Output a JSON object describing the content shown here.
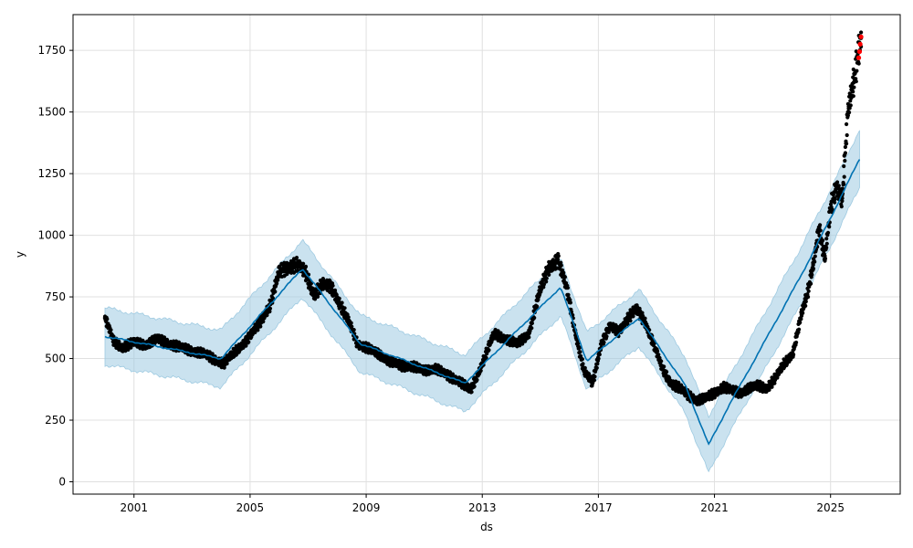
{
  "chart_data": {
    "type": "line",
    "title": "",
    "xlabel": "ds",
    "ylabel": "y",
    "xlim": [
      1998.9,
      2027.4
    ],
    "ylim": [
      -50,
      1895
    ],
    "grid": true,
    "x_ticks": [
      {
        "value": 2001,
        "label": "2001"
      },
      {
        "value": 2005,
        "label": "2005"
      },
      {
        "value": 2009,
        "label": "2009"
      },
      {
        "value": 2013,
        "label": "2013"
      },
      {
        "value": 2017,
        "label": "2017"
      },
      {
        "value": 2021,
        "label": "2021"
      },
      {
        "value": 2025,
        "label": "2025"
      }
    ],
    "y_ticks": [
      {
        "value": 0,
        "label": "0"
      },
      {
        "value": 250,
        "label": "250"
      },
      {
        "value": 500,
        "label": "500"
      },
      {
        "value": 750,
        "label": "750"
      },
      {
        "value": 1000,
        "label": "1000"
      },
      {
        "value": 1250,
        "label": "1250"
      },
      {
        "value": 1500,
        "label": "1500"
      },
      {
        "value": 1750,
        "label": "1750"
      }
    ],
    "colors": {
      "forecast_line": "#0072B2",
      "uncertainty_band": "#9ecae1",
      "observed_points": "#000000",
      "highlighted_points": "#ff0000",
      "grid": "#e0e0e0"
    },
    "series": [
      {
        "role": "forecast",
        "x": [
          2000.0,
          2004.0,
          2006.8,
          2008.8,
          2012.4,
          2015.7,
          2016.6,
          2018.4,
          2020.0,
          2020.8,
          2021.5,
          2022.5,
          2024.0,
          2025.0,
          2026.0
        ],
        "y": [
          590,
          500,
          865,
          560,
          400,
          790,
          490,
          665,
          390,
          150,
          310,
          520,
          840,
          1070,
          1310
        ]
      },
      {
        "role": "uncertainty_upper",
        "x": [
          2000.0,
          2004.0,
          2006.8,
          2008.8,
          2012.4,
          2015.7,
          2016.6,
          2018.4,
          2020.0,
          2020.8,
          2021.5,
          2022.5,
          2024.0,
          2025.0,
          2026.0
        ],
        "y": [
          705,
          615,
          980,
          675,
          515,
          905,
          605,
          780,
          505,
          265,
          425,
          635,
          955,
          1185,
          1430
        ]
      },
      {
        "role": "uncertainty_lower",
        "x": [
          2000.0,
          2004.0,
          2006.8,
          2008.8,
          2012.4,
          2015.7,
          2016.6,
          2018.4,
          2020.0,
          2020.8,
          2021.5,
          2022.5,
          2024.0,
          2025.0,
          2026.0
        ],
        "y": [
          475,
          385,
          750,
          445,
          285,
          675,
          375,
          550,
          275,
          35,
          195,
          405,
          725,
          955,
          1195
        ]
      },
      {
        "role": "observed",
        "x": [
          2000.0,
          2000.3,
          2000.6,
          2001.0,
          2001.4,
          2001.8,
          2002.2,
          2002.6,
          2003.0,
          2003.4,
          2003.8,
          2004.1,
          2004.5,
          2004.9,
          2005.3,
          2005.7,
          2006.0,
          2006.3,
          2006.6,
          2006.9,
          2007.2,
          2007.5,
          2007.8,
          2008.1,
          2008.4,
          2008.7,
          2009.0,
          2009.4,
          2009.8,
          2010.2,
          2010.6,
          2011.0,
          2011.4,
          2011.8,
          2012.2,
          2012.6,
          2013.0,
          2013.4,
          2013.8,
          2014.2,
          2014.6,
          2015.0,
          2015.3,
          2015.6,
          2015.9,
          2016.2,
          2016.5,
          2016.8,
          2017.1,
          2017.4,
          2017.7,
          2018.0,
          2018.3,
          2018.6,
          2018.9,
          2019.2,
          2019.5,
          2019.8,
          2020.1,
          2020.4,
          2020.7,
          2021.0,
          2021.3,
          2021.6,
          2021.9,
          2022.2,
          2022.5,
          2022.8,
          2023.1,
          2023.4,
          2023.7,
          2024.0,
          2024.2,
          2024.4,
          2024.6,
          2024.8,
          2025.0,
          2025.2,
          2025.4,
          2025.6,
          2025.8,
          2026.0,
          2026.05
        ],
        "y": [
          665,
          570,
          545,
          565,
          555,
          580,
          560,
          545,
          530,
          520,
          495,
          480,
          530,
          575,
          640,
          720,
          850,
          870,
          880,
          850,
          760,
          800,
          790,
          720,
          650,
          560,
          545,
          520,
          490,
          470,
          470,
          450,
          460,
          430,
          410,
          370,
          480,
          600,
          580,
          560,
          600,
          780,
          870,
          900,
          790,
          610,
          450,
          400,
          560,
          630,
          610,
          660,
          700,
          650,
          560,
          460,
          400,
          380,
          350,
          330,
          340,
          360,
          385,
          370,
          360,
          380,
          390,
          380,
          420,
          480,
          520,
          680,
          760,
          880,
          1030,
          900,
          1110,
          1200,
          1150,
          1500,
          1620,
          1780,
          1800
        ]
      },
      {
        "role": "highlighted",
        "x": [
          2025.97,
          2026.0,
          2026.02,
          2026.05
        ],
        "y": [
          1720,
          1745,
          1775,
          1805
        ]
      }
    ]
  }
}
